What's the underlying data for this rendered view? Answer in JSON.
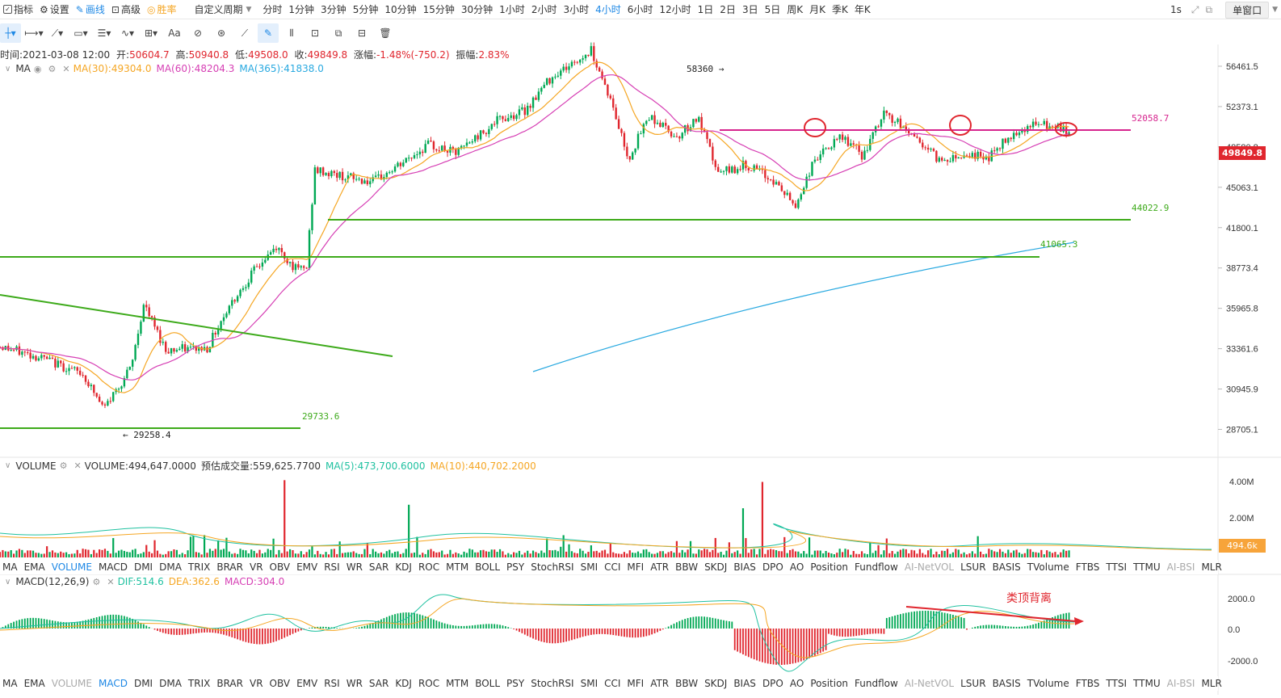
{
  "toolbar": {
    "indicators": "指标",
    "settings": "设置",
    "draw": "画线",
    "advanced": "高级",
    "winrate": "胜率",
    "custom_period": "自定义周期",
    "periods": [
      "分时",
      "1分钟",
      "3分钟",
      "5分钟",
      "10分钟",
      "15分钟",
      "30分钟",
      "1小时",
      "2小时",
      "3小时",
      "4小时",
      "6小时",
      "12小时",
      "1日",
      "2日",
      "3日",
      "5日",
      "周K",
      "月K",
      "季K",
      "年K"
    ],
    "active_period": "4小时",
    "interval": "1s",
    "window_mode": "单窗口"
  },
  "ohlc": {
    "time_label": "时间:",
    "time": "2021-03-08 12:00",
    "open_label": "开:",
    "open": "50604.7",
    "high_label": "高:",
    "high": "50940.8",
    "low_label": "低:",
    "low": "49508.0",
    "close_label": "收:",
    "close": "49849.8",
    "chg_label": "涨幅:",
    "chg": "-1.48%(-750.2)",
    "amp_label": "振幅:",
    "amp": "2.83%"
  },
  "ma_legend": {
    "name": "MA",
    "ma30": "MA(30):49304.0",
    "ma60": "MA(60):48204.3",
    "ma365": "MA(365):41838.0"
  },
  "vol_legend": {
    "name": "VOLUME",
    "vol": "VOLUME:494,647.0000",
    "est": "预估成交量:559,625.7700",
    "ma5": "MA(5):473,700.6000",
    "ma10": "MA(10):440,702.2000"
  },
  "macd_legend": {
    "name": "MACD(12,26,9)",
    "dif": "DIF:514.6",
    "dea": "DEA:362.6",
    "macd": "MACD:304.0"
  },
  "price_axis": [
    "56461.5",
    "52373.1",
    "48580.8",
    "45063.1",
    "41800.1",
    "38773.4",
    "35965.8",
    "33361.6",
    "30945.9",
    "28705.1"
  ],
  "current_price": "49849.8",
  "vol_axis": [
    "4.00M",
    "2.00M"
  ],
  "current_vol": "494.6k",
  "macd_axis": [
    "2000.0",
    "0.0",
    "-2000.0"
  ],
  "annotations": {
    "high": "58360",
    "low": "29258.4",
    "l1": "52058.7",
    "l2": "44022.9",
    "l3": "41065.3",
    "l4": "29733.6",
    "divergence": "类顶背离"
  },
  "indicator_tabs": [
    "MA",
    "EMA",
    "VOLUME",
    "MACD",
    "DMI",
    "DMA",
    "TRIX",
    "BRAR",
    "VR",
    "OBV",
    "EMV",
    "RSI",
    "WR",
    "SAR",
    "KDJ",
    "ROC",
    "MTM",
    "BOLL",
    "PSY",
    "StochRSI",
    "SMI",
    "CCI",
    "MFI",
    "ATR",
    "BBW",
    "SKDJ",
    "BIAS",
    "DPO",
    "AO",
    "Position",
    "Fundflow",
    "AI-NetVOL",
    "LSUR",
    "BASIS",
    "TVolume",
    "FTBS",
    "TTSI",
    "TTMU",
    "AI-BSI",
    "MLR"
  ],
  "colors": {
    "up": "#e0262e",
    "down": "#00a854",
    "ma30": "#f5a623",
    "ma60": "#d63fb4",
    "ma365": "#29a9e0",
    "hline_green": "#3daa1a",
    "hline_pink": "#d6248e"
  },
  "chart_data": {
    "type": "candlestick",
    "price_range": [
      27500,
      58800
    ],
    "series": [
      {
        "name": "MA(30)"
      },
      {
        "name": "MA(60)"
      },
      {
        "name": "MA(365)"
      }
    ],
    "horizontal_levels": [
      52058.7,
      44022.9,
      41065.3,
      29733.6
    ],
    "extremes": {
      "high": 58360,
      "low": 29258.4
    }
  }
}
